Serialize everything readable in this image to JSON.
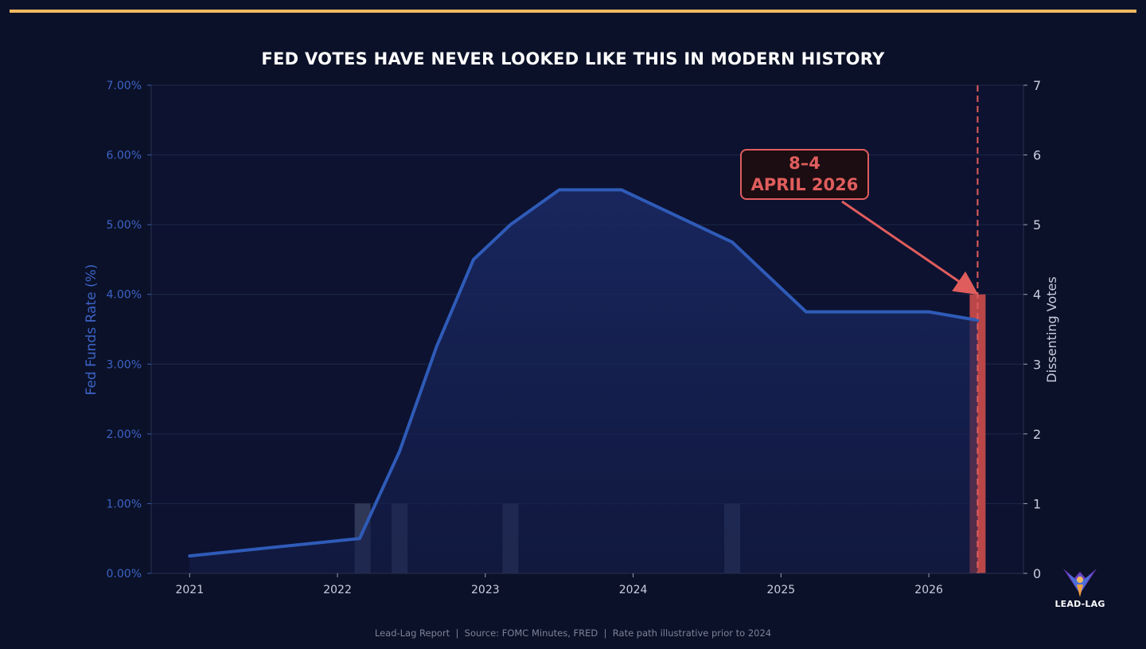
{
  "chart_data": {
    "type": "line",
    "title": "FED VOTES HAVE NEVER LOOKED LIKE THIS IN MODERN HISTORY",
    "xlabel": "",
    "ylabel": "Fed Funds Rate (%)",
    "y2label": "Dissenting Votes",
    "xlim": [
      2020.74,
      2026.64
    ],
    "ylim": [
      0,
      7
    ],
    "y2lim": [
      0,
      7
    ],
    "x_ticks": [
      2021,
      2022,
      2023,
      2024,
      2025,
      2026
    ],
    "x_tick_labels": [
      "2021",
      "2022",
      "2023",
      "2024",
      "2025",
      "2026"
    ],
    "y_ticks": [
      0,
      1,
      2,
      3,
      4,
      5,
      6,
      7
    ],
    "y_tick_labels": [
      "0.00%",
      "1.00%",
      "2.00%",
      "3.00%",
      "4.00%",
      "5.00%",
      "6.00%",
      "7.00%"
    ],
    "y2_tick_labels": [
      "0",
      "1",
      "2",
      "3",
      "4",
      "5",
      "6",
      "7"
    ],
    "grid": true,
    "series": [
      {
        "name": "Fed Funds Rate (%)",
        "type": "area-line",
        "color": "#2f5bb8",
        "x": [
          2021.0,
          2022.15,
          2022.42,
          2022.67,
          2022.92,
          2023.17,
          2023.5,
          2023.92,
          2024.67,
          2025.17,
          2026.0,
          2026.33
        ],
        "y": [
          0.25,
          0.5,
          1.75,
          3.25,
          4.5,
          5.0,
          5.5,
          5.5,
          4.75,
          3.75,
          3.75,
          3.63
        ]
      },
      {
        "name": "Dissenting Votes",
        "type": "bar",
        "axis": "right",
        "x": [
          2022.17,
          2022.42,
          2023.17,
          2024.67,
          2026.33
        ],
        "values": [
          1,
          1,
          1,
          1,
          4
        ],
        "colors": [
          "#3a4262",
          "#3a4262",
          "#3a4262",
          "#3a4262",
          "#c44a4a"
        ]
      }
    ],
    "annotations": [
      {
        "lines": [
          "8–4",
          "APRIL 2026"
        ],
        "target_x": 2026.33,
        "target_y": 4,
        "color": "#e05d5d"
      }
    ],
    "vline": {
      "x": 2026.33,
      "color": "#e05d5d",
      "style": "dashed"
    }
  },
  "footer": "Lead-Lag Report  |  Source: FOMC Minutes, FRED  |  Rate path illustrative prior to 2024",
  "logo": {
    "text": "LEAD-LAG",
    "icon": "phoenix-logo-icon"
  },
  "colors": {
    "background": "#0b1128",
    "accent_rule": "#f4b860",
    "rate_line": "#2f5bb8",
    "dissent_bar": "#3a4262",
    "highlight": "#e05d5d"
  }
}
